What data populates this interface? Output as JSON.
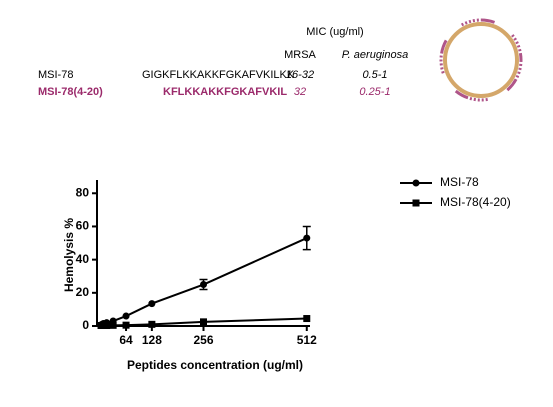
{
  "table": {
    "caption": "MIC (ug/ml)",
    "columns": [
      "MRSA",
      "P. aeruginosa"
    ],
    "rows": [
      [
        "MSI-78",
        "GIGKFLKKAKKFGKAFVKILKK",
        "16-32",
        "0.5-1"
      ],
      [
        "MSI-78(4-20)",
        "KFLKKAKKFGKAFVKIL",
        "32",
        "0.25-1"
      ]
    ]
  },
  "chart_data": {
    "type": "line",
    "xlabel": "Peptides concentration (ug/ml)",
    "ylabel": "Hemolysis %",
    "x": [
      2,
      4,
      8,
      16,
      32,
      64,
      128,
      256,
      512
    ],
    "series": [
      {
        "name": "MSI-78",
        "color": "#000000",
        "marker": "circle",
        "values": [
          0.5,
          1,
          1.5,
          2,
          3,
          6,
          13.5,
          25,
          53
        ],
        "errors": [
          null,
          null,
          null,
          null,
          null,
          null,
          null,
          3,
          7
        ]
      },
      {
        "name": "MSI-78(4-20)",
        "color": "#000000",
        "marker": "square",
        "values": [
          0.3,
          0.3,
          0.3,
          0.3,
          0.4,
          0.5,
          1,
          2.5,
          4.5
        ]
      }
    ],
    "xlim": [
      -8,
      520
    ],
    "ylim": [
      0,
      88
    ],
    "xticks": [
      64,
      128,
      256,
      512
    ],
    "yticks": [
      0,
      20,
      40,
      60,
      80
    ],
    "legend": "right"
  }
}
